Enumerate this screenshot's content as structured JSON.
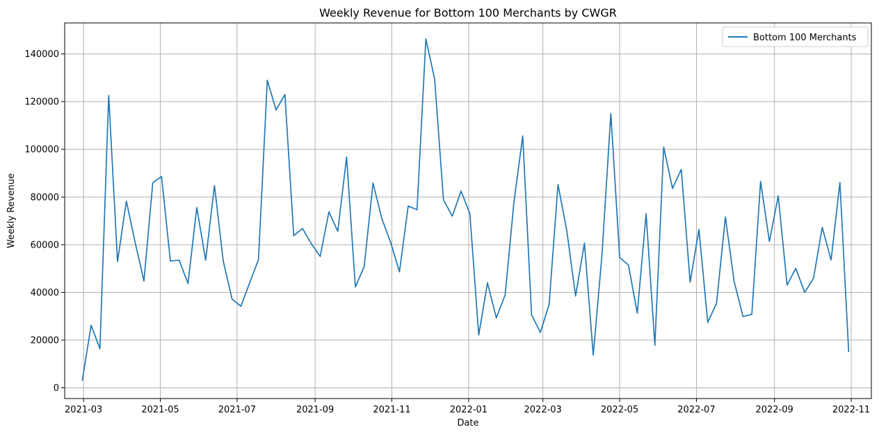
{
  "chart_data": {
    "type": "line",
    "title": "Weekly Revenue for Bottom 100 Merchants by CWGR",
    "xlabel": "Date",
    "ylabel": "Weekly Revenue",
    "grid": true,
    "legend_position": "top-right",
    "xlim": [
      "2021-02-14",
      "2022-11-17"
    ],
    "ylim": [
      -4500,
      153000
    ],
    "x_ticks": [
      "2021-03-01",
      "2021-05-01",
      "2021-07-01",
      "2021-09-01",
      "2021-11-01",
      "2022-01-01",
      "2022-03-01",
      "2022-05-01",
      "2022-07-01",
      "2022-09-01",
      "2022-11-01"
    ],
    "x_tick_labels": [
      "2021-03",
      "2021-05",
      "2021-07",
      "2021-09",
      "2021-11",
      "2022-01",
      "2022-03",
      "2022-05",
      "2022-07",
      "2022-09",
      "2022-11"
    ],
    "y_ticks": [
      0,
      20000,
      40000,
      60000,
      80000,
      100000,
      120000,
      140000
    ],
    "y_tick_labels": [
      "0",
      "20000",
      "40000",
      "60000",
      "80000",
      "100000",
      "120000",
      "140000"
    ],
    "series": [
      {
        "name": "Bottom 100 Merchants",
        "color": "#1f77b4",
        "x": [
          "2021-02-28",
          "2021-03-07",
          "2021-03-14",
          "2021-03-21",
          "2021-03-28",
          "2021-04-04",
          "2021-04-11",
          "2021-04-18",
          "2021-04-25",
          "2021-05-02",
          "2021-05-09",
          "2021-05-16",
          "2021-05-23",
          "2021-05-30",
          "2021-06-06",
          "2021-06-13",
          "2021-06-20",
          "2021-06-27",
          "2021-07-04",
          "2021-07-11",
          "2021-07-18",
          "2021-07-25",
          "2021-08-01",
          "2021-08-08",
          "2021-08-15",
          "2021-08-22",
          "2021-08-29",
          "2021-09-05",
          "2021-09-12",
          "2021-09-19",
          "2021-09-26",
          "2021-10-03",
          "2021-10-10",
          "2021-10-17",
          "2021-10-24",
          "2021-10-31",
          "2021-11-07",
          "2021-11-14",
          "2021-11-21",
          "2021-11-28",
          "2021-12-05",
          "2021-12-12",
          "2021-12-19",
          "2021-12-26",
          "2022-01-02",
          "2022-01-09",
          "2022-01-16",
          "2022-01-23",
          "2022-01-30",
          "2022-02-06",
          "2022-02-13",
          "2022-02-20",
          "2022-02-27",
          "2022-03-06",
          "2022-03-13",
          "2022-03-20",
          "2022-03-27",
          "2022-04-03",
          "2022-04-10",
          "2022-04-17",
          "2022-04-24",
          "2022-05-01",
          "2022-05-08",
          "2022-05-15",
          "2022-05-22",
          "2022-05-29",
          "2022-06-05",
          "2022-06-12",
          "2022-06-19",
          "2022-06-26",
          "2022-07-03",
          "2022-07-10",
          "2022-07-17",
          "2022-07-24",
          "2022-07-31",
          "2022-08-07",
          "2022-08-14",
          "2022-08-21",
          "2022-08-28",
          "2022-09-04",
          "2022-09-11",
          "2022-09-18",
          "2022-09-25",
          "2022-10-02",
          "2022-10-09",
          "2022-10-16",
          "2022-10-23",
          "2022-10-30"
        ],
        "y": [
          3000,
          26200,
          16400,
          122600,
          52900,
          78300,
          61000,
          44800,
          86000,
          88600,
          53200,
          53500,
          43700,
          75600,
          53500,
          84800,
          53200,
          37200,
          34200,
          44000,
          53800,
          129000,
          116500,
          123000,
          63800,
          66800,
          60400,
          55100,
          73800,
          65600,
          96800,
          42300,
          50800,
          85900,
          71000,
          61000,
          48600,
          76200,
          74700,
          146300,
          129500,
          78800,
          72000,
          82500,
          73000,
          22100,
          44000,
          29300,
          39000,
          78000,
          105600,
          30600,
          23200,
          35100,
          85300,
          65800,
          38500,
          60700,
          13700,
          56000,
          115000,
          54600,
          51500,
          31300,
          73000,
          17800,
          100900,
          83600,
          91600,
          44300,
          66400,
          27400,
          35500,
          71600,
          44600,
          29900,
          30800,
          86600,
          61400,
          80500,
          43100,
          50100,
          40000,
          45900,
          67300,
          53600,
          86100,
          15000
        ]
      }
    ]
  }
}
